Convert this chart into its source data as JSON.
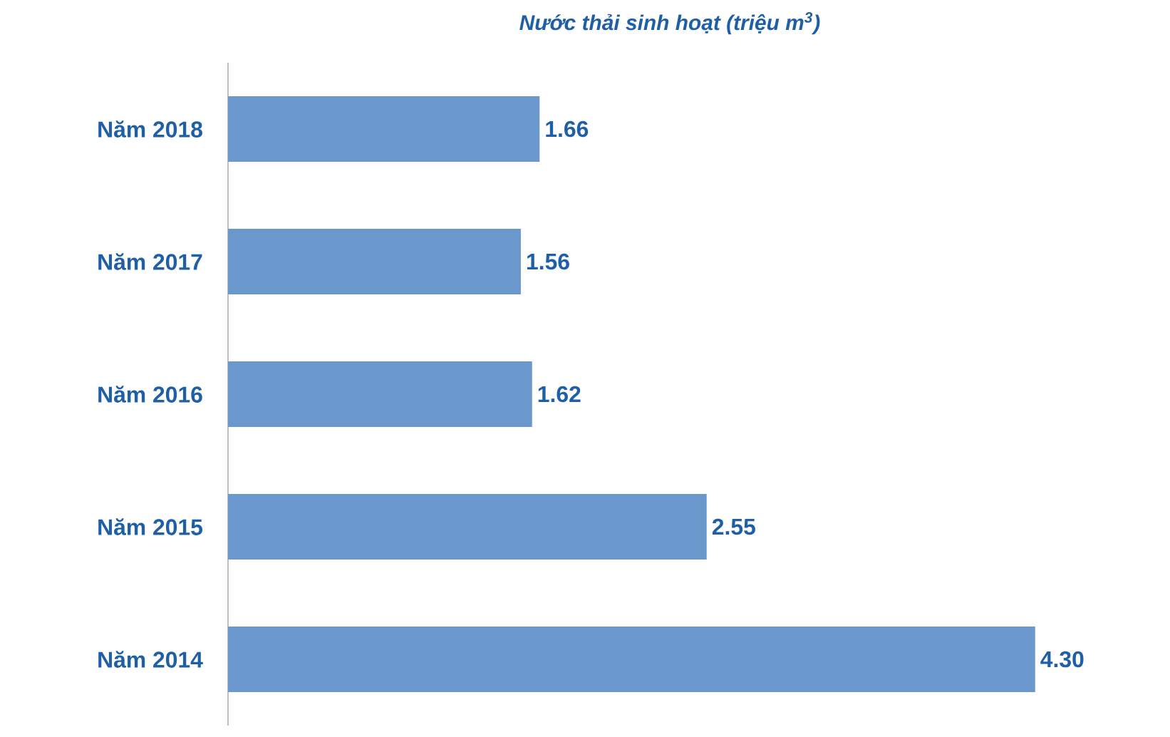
{
  "chart_data": {
    "type": "bar",
    "orientation": "horizontal",
    "title": "Nước thải sinh hoạt (triệu m$^{3}$)",
    "categories": [
      "Năm 2018",
      "Năm 2017",
      "Năm 2016",
      "Năm 2015",
      "Năm 2014"
    ],
    "values": [
      1.66,
      1.56,
      1.62,
      2.55,
      4.3
    ],
    "value_labels": [
      "1.66",
      "1.56",
      "1.62",
      "2.55",
      "4.30"
    ],
    "color": "#6a98cc"
  }
}
